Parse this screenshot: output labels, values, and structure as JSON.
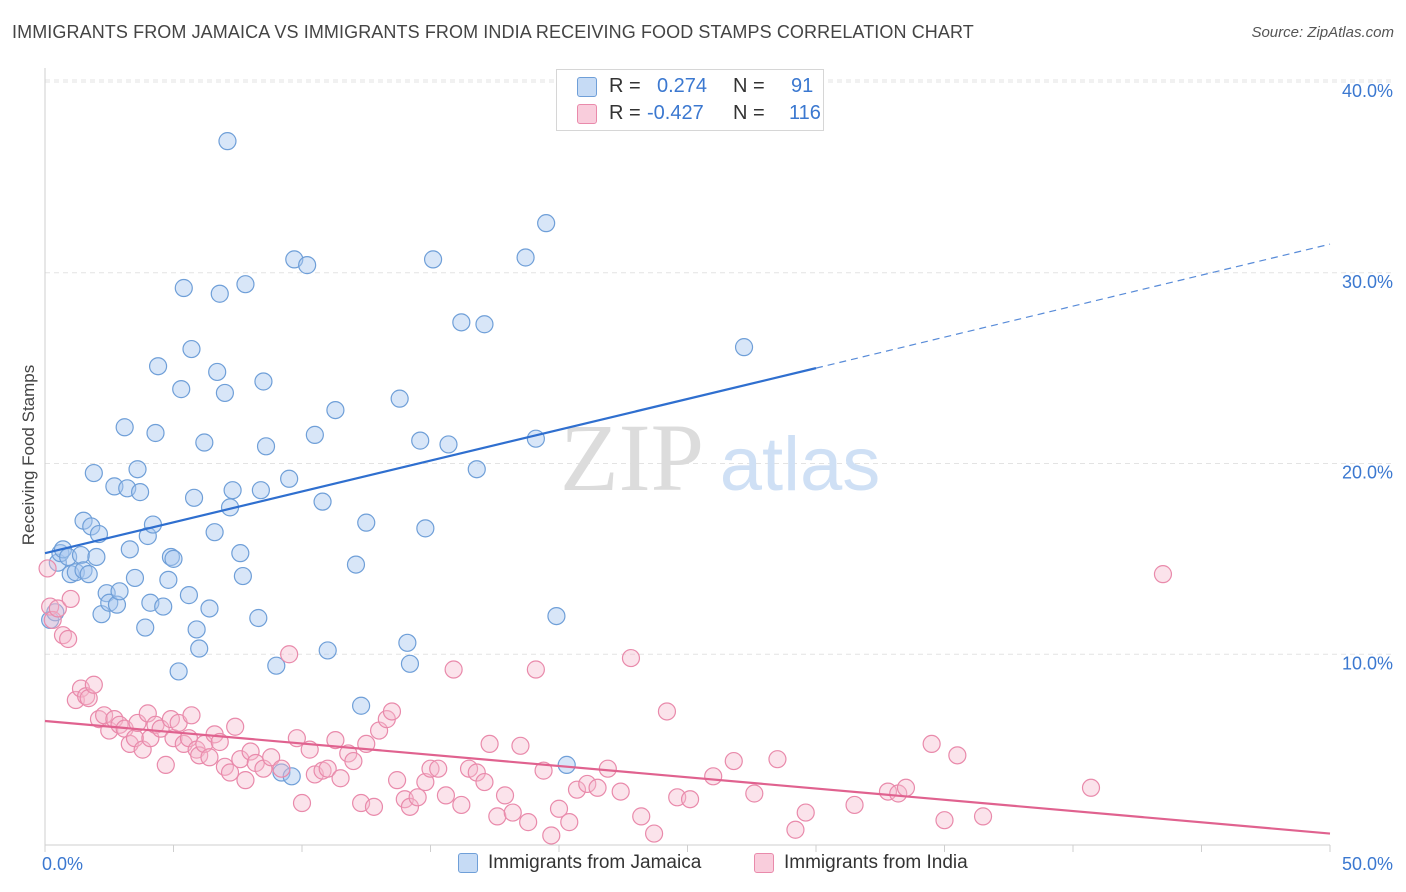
{
  "title": "IMMIGRANTS FROM JAMAICA VS IMMIGRANTS FROM INDIA RECEIVING FOOD STAMPS CORRELATION CHART",
  "source": "Source: ZipAtlas.com",
  "watermark": {
    "zip": "ZIP",
    "atlas": "atlas"
  },
  "legend": {
    "r_label": "R =",
    "n_label": "N =",
    "rows": [
      {
        "r": "0.274",
        "n": "91"
      },
      {
        "r": "-0.427",
        "n": "116"
      }
    ]
  },
  "bottom_legend": [
    "Immigrants from Jamaica",
    "Immigrants from India"
  ],
  "colors": {
    "jamaica_fill": "#a9c8ef",
    "jamaica_stroke": "#6f9fd8",
    "jamaica_line": "#2f6fcf",
    "india_fill": "#f5b8cc",
    "india_stroke": "#e98aab",
    "india_line": "#e0628f",
    "axis_text": "#3b78d0"
  },
  "chart_data": {
    "type": "scatter",
    "title": "IMMIGRANTS FROM JAMAICA VS IMMIGRANTS FROM INDIA RECEIVING FOOD STAMPS CORRELATION CHART",
    "xlabel": "",
    "ylabel": "Receiving Food Stamps",
    "xlim": [
      0,
      50
    ],
    "ylim": [
      0,
      40
    ],
    "x_tick_labels": [
      "0.0%",
      "50.0%"
    ],
    "y_ticks": [
      10,
      20,
      30,
      40
    ],
    "y_tick_labels": [
      "10.0%",
      "20.0%",
      "30.0%",
      "40.0%"
    ],
    "grid": true,
    "series": [
      {
        "name": "Immigrants from Jamaica",
        "r": 0.274,
        "n": 91,
        "trend": {
          "x0": 0,
          "y0": 15.3,
          "x1": 30,
          "y1": 25.0,
          "dashed_to_x": 50,
          "dashed_to_y": 31.5
        },
        "points": [
          [
            0.2,
            11.8
          ],
          [
            0.4,
            12.2
          ],
          [
            0.5,
            14.8
          ],
          [
            0.6,
            15.3
          ],
          [
            0.7,
            15.5
          ],
          [
            0.9,
            15.1
          ],
          [
            1.0,
            14.2
          ],
          [
            1.2,
            14.3
          ],
          [
            1.4,
            15.2
          ],
          [
            1.5,
            14.4
          ],
          [
            1.5,
            17.0
          ],
          [
            1.7,
            14.2
          ],
          [
            1.8,
            16.7
          ],
          [
            1.9,
            19.5
          ],
          [
            2.0,
            15.1
          ],
          [
            2.1,
            16.3
          ],
          [
            2.2,
            12.1
          ],
          [
            2.4,
            13.2
          ],
          [
            2.5,
            12.7
          ],
          [
            2.7,
            18.8
          ],
          [
            2.8,
            12.6
          ],
          [
            2.9,
            13.3
          ],
          [
            3.1,
            21.9
          ],
          [
            3.2,
            18.7
          ],
          [
            3.3,
            15.5
          ],
          [
            3.5,
            14.0
          ],
          [
            3.6,
            19.7
          ],
          [
            3.7,
            18.5
          ],
          [
            3.9,
            11.4
          ],
          [
            4.0,
            16.2
          ],
          [
            4.1,
            12.7
          ],
          [
            4.2,
            16.8
          ],
          [
            4.3,
            21.6
          ],
          [
            4.4,
            25.1
          ],
          [
            4.6,
            12.5
          ],
          [
            4.8,
            13.9
          ],
          [
            4.9,
            15.1
          ],
          [
            5.0,
            15.0
          ],
          [
            5.2,
            9.1
          ],
          [
            5.3,
            23.9
          ],
          [
            5.4,
            29.2
          ],
          [
            5.6,
            13.1
          ],
          [
            5.7,
            26.0
          ],
          [
            5.8,
            18.2
          ],
          [
            5.9,
            11.3
          ],
          [
            6.0,
            10.3
          ],
          [
            6.2,
            21.1
          ],
          [
            6.4,
            12.4
          ],
          [
            6.6,
            16.4
          ],
          [
            6.7,
            24.8
          ],
          [
            6.8,
            28.9
          ],
          [
            7.0,
            23.7
          ],
          [
            7.1,
            36.9
          ],
          [
            7.2,
            17.7
          ],
          [
            7.3,
            18.6
          ],
          [
            7.6,
            15.3
          ],
          [
            7.7,
            14.1
          ],
          [
            7.8,
            29.4
          ],
          [
            8.3,
            11.9
          ],
          [
            8.4,
            18.6
          ],
          [
            8.5,
            24.3
          ],
          [
            8.6,
            20.9
          ],
          [
            9.0,
            9.4
          ],
          [
            9.2,
            3.8
          ],
          [
            9.5,
            19.2
          ],
          [
            9.6,
            3.6
          ],
          [
            9.7,
            30.7
          ],
          [
            10.2,
            30.4
          ],
          [
            10.5,
            21.5
          ],
          [
            10.8,
            18.0
          ],
          [
            11.0,
            10.2
          ],
          [
            11.3,
            22.8
          ],
          [
            12.1,
            14.7
          ],
          [
            12.3,
            7.3
          ],
          [
            12.5,
            16.9
          ],
          [
            13.8,
            23.4
          ],
          [
            14.1,
            10.6
          ],
          [
            14.2,
            9.5
          ],
          [
            14.6,
            21.2
          ],
          [
            14.8,
            16.6
          ],
          [
            15.1,
            30.7
          ],
          [
            15.7,
            21.0
          ],
          [
            16.2,
            27.4
          ],
          [
            16.8,
            19.7
          ],
          [
            17.1,
            27.3
          ],
          [
            18.7,
            30.8
          ],
          [
            19.1,
            21.3
          ],
          [
            19.5,
            32.6
          ],
          [
            19.9,
            12.0
          ],
          [
            20.3,
            4.2
          ],
          [
            27.2,
            26.1
          ]
        ]
      },
      {
        "name": "Immigrants from India",
        "r": -0.427,
        "n": 116,
        "trend": {
          "x0": 0,
          "y0": 6.5,
          "x1": 50,
          "y1": 0.6
        },
        "points": [
          [
            0.1,
            14.5
          ],
          [
            0.2,
            12.5
          ],
          [
            0.3,
            11.8
          ],
          [
            0.5,
            12.4
          ],
          [
            0.7,
            11.0
          ],
          [
            0.9,
            10.8
          ],
          [
            1.0,
            12.9
          ],
          [
            1.2,
            7.6
          ],
          [
            1.4,
            8.2
          ],
          [
            1.6,
            7.8
          ],
          [
            1.7,
            7.7
          ],
          [
            1.9,
            8.4
          ],
          [
            2.1,
            6.6
          ],
          [
            2.3,
            6.8
          ],
          [
            2.5,
            6.0
          ],
          [
            2.7,
            6.6
          ],
          [
            2.9,
            6.3
          ],
          [
            3.1,
            6.1
          ],
          [
            3.3,
            5.3
          ],
          [
            3.5,
            5.6
          ],
          [
            3.6,
            6.4
          ],
          [
            3.8,
            5.0
          ],
          [
            4.0,
            6.9
          ],
          [
            4.1,
            5.6
          ],
          [
            4.3,
            6.3
          ],
          [
            4.5,
            6.1
          ],
          [
            4.7,
            4.2
          ],
          [
            4.9,
            6.6
          ],
          [
            5.0,
            5.6
          ],
          [
            5.2,
            6.4
          ],
          [
            5.4,
            5.3
          ],
          [
            5.6,
            5.6
          ],
          [
            5.7,
            6.8
          ],
          [
            5.9,
            5.0
          ],
          [
            6.0,
            4.7
          ],
          [
            6.2,
            5.3
          ],
          [
            6.4,
            4.6
          ],
          [
            6.6,
            5.8
          ],
          [
            6.8,
            5.4
          ],
          [
            7.0,
            4.1
          ],
          [
            7.2,
            3.8
          ],
          [
            7.4,
            6.2
          ],
          [
            7.6,
            4.5
          ],
          [
            7.8,
            3.4
          ],
          [
            8.0,
            4.9
          ],
          [
            8.2,
            4.3
          ],
          [
            8.5,
            4.0
          ],
          [
            8.8,
            4.6
          ],
          [
            9.2,
            4.0
          ],
          [
            9.5,
            10.0
          ],
          [
            9.8,
            5.6
          ],
          [
            10.0,
            2.2
          ],
          [
            10.3,
            5.0
          ],
          [
            10.5,
            3.7
          ],
          [
            10.8,
            3.9
          ],
          [
            11.0,
            4.0
          ],
          [
            11.3,
            5.5
          ],
          [
            11.5,
            3.5
          ],
          [
            11.8,
            4.8
          ],
          [
            12.0,
            4.4
          ],
          [
            12.3,
            2.2
          ],
          [
            12.5,
            5.3
          ],
          [
            12.8,
            2.0
          ],
          [
            13.0,
            6.0
          ],
          [
            13.3,
            6.6
          ],
          [
            13.5,
            7.0
          ],
          [
            13.7,
            3.4
          ],
          [
            14.0,
            2.4
          ],
          [
            14.2,
            2.0
          ],
          [
            14.5,
            2.5
          ],
          [
            14.8,
            3.3
          ],
          [
            15.0,
            4.0
          ],
          [
            15.3,
            4.0
          ],
          [
            15.6,
            2.6
          ],
          [
            15.9,
            9.2
          ],
          [
            16.2,
            2.1
          ],
          [
            16.5,
            4.0
          ],
          [
            16.8,
            3.8
          ],
          [
            17.1,
            3.3
          ],
          [
            17.3,
            5.3
          ],
          [
            17.6,
            1.5
          ],
          [
            17.9,
            2.6
          ],
          [
            18.2,
            1.7
          ],
          [
            18.5,
            5.2
          ],
          [
            18.8,
            1.2
          ],
          [
            19.1,
            9.2
          ],
          [
            19.4,
            3.9
          ],
          [
            19.7,
            0.5
          ],
          [
            20.0,
            1.9
          ],
          [
            20.4,
            1.2
          ],
          [
            20.7,
            2.9
          ],
          [
            21.1,
            3.2
          ],
          [
            21.5,
            3.0
          ],
          [
            21.9,
            4.0
          ],
          [
            22.4,
            2.8
          ],
          [
            22.8,
            9.8
          ],
          [
            23.2,
            1.5
          ],
          [
            23.7,
            0.6
          ],
          [
            24.2,
            7.0
          ],
          [
            24.6,
            2.5
          ],
          [
            25.1,
            2.4
          ],
          [
            26.0,
            3.6
          ],
          [
            26.8,
            4.4
          ],
          [
            27.6,
            2.7
          ],
          [
            28.5,
            4.5
          ],
          [
            29.2,
            0.8
          ],
          [
            29.6,
            1.7
          ],
          [
            31.5,
            2.1
          ],
          [
            32.8,
            2.8
          ],
          [
            33.2,
            2.7
          ],
          [
            33.5,
            3.0
          ],
          [
            34.5,
            5.3
          ],
          [
            35.0,
            1.3
          ],
          [
            35.5,
            4.7
          ],
          [
            36.5,
            1.5
          ],
          [
            40.7,
            3.0
          ],
          [
            43.5,
            14.2
          ]
        ]
      }
    ]
  }
}
